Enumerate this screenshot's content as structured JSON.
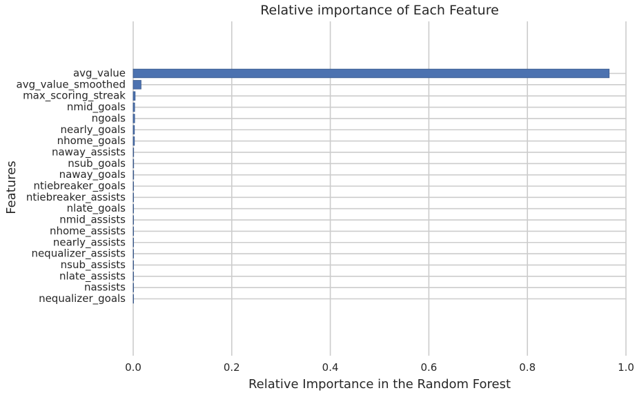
{
  "chart_data": {
    "type": "bar",
    "orientation": "horizontal",
    "title": "Relative importance of Each Feature",
    "xlabel": "Relative Importance in the Random Forest",
    "ylabel": "Features",
    "xlim": [
      0,
      1.0
    ],
    "xticks": [
      0.0,
      0.2,
      0.4,
      0.6,
      0.8,
      1.0
    ],
    "xtick_labels": [
      "0.0",
      "0.2",
      "0.4",
      "0.6",
      "0.8",
      "1.0"
    ],
    "grid": true,
    "bar_color": "#4c72b0",
    "categories": [
      "avg_value",
      "avg_value_smoothed",
      "max_scoring_streak",
      "nmid_goals",
      "ngoals",
      "nearly_goals",
      "nhome_goals",
      "naway_assists",
      "nsub_goals",
      "naway_goals",
      "ntiebreaker_goals",
      "ntiebreaker_assists",
      "nlate_goals",
      "nmid_assists",
      "nhome_assists",
      "nearly_assists",
      "nequalizer_assists",
      "nsub_assists",
      "nlate_assists",
      "nassists",
      "nequalizer_goals"
    ],
    "values": [
      0.966,
      0.016,
      0.004,
      0.003,
      0.003,
      0.0025,
      0.0025,
      0.001,
      0.001,
      0.001,
      0.0005,
      0.0005,
      0.0005,
      0.0003,
      0.0003,
      0.0003,
      0.0002,
      0.0002,
      0.0002,
      0.0001,
      0.0001
    ]
  }
}
